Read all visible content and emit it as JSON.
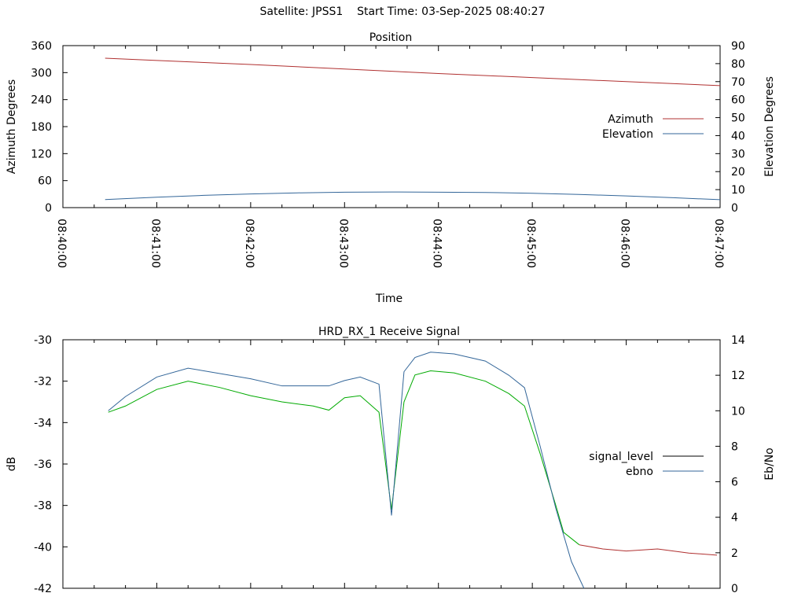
{
  "header": {
    "title": "Satellite: JPSS1    Start Time: 03-Sep-2025 08:40:27"
  },
  "chart_data": [
    {
      "type": "line",
      "title": "Position",
      "xlabel": "Time",
      "ylabel": "Azimuth Degrees",
      "y2label": "Elevation Degrees",
      "xlim": [
        "08:40:00",
        "08:47:00"
      ],
      "ylim": [
        0,
        360
      ],
      "y2lim": [
        0,
        90
      ],
      "x_ticks": [
        "08:40:00",
        "08:41:00",
        "08:42:00",
        "08:43:00",
        "08:44:00",
        "08:45:00",
        "08:46:00",
        "08:47:00"
      ],
      "y_ticks": [
        "0",
        "60",
        "120",
        "180",
        "240",
        "300",
        "360"
      ],
      "y2_ticks": [
        "0",
        "10",
        "20",
        "30",
        "40",
        "50",
        "60",
        "70",
        "80",
        "90"
      ],
      "legend": "right",
      "series": [
        {
          "name": "Azimuth",
          "axis": "y",
          "color": "#b03030",
          "x": [
            "08:40:27",
            "08:41:00",
            "08:42:00",
            "08:43:00",
            "08:44:00",
            "08:45:00",
            "08:46:00",
            "08:47:00"
          ],
          "values": [
            332,
            327,
            318,
            308,
            298,
            289,
            280,
            271
          ]
        },
        {
          "name": "Elevation",
          "axis": "y2",
          "color": "#336699",
          "x": [
            "08:40:27",
            "08:41:00",
            "08:41:30",
            "08:42:00",
            "08:42:30",
            "08:43:00",
            "08:43:30",
            "08:44:00",
            "08:44:30",
            "08:45:00",
            "08:45:30",
            "08:46:00",
            "08:46:30",
            "08:47:00"
          ],
          "values": [
            4.5,
            5.8,
            6.8,
            7.6,
            8.2,
            8.6,
            8.7,
            8.6,
            8.4,
            8.0,
            7.3,
            6.5,
            5.5,
            4.4
          ]
        }
      ]
    },
    {
      "type": "line",
      "title": "HRD_RX_1 Receive Signal",
      "xlabel": "",
      "ylabel": "dB",
      "y2label": "Eb/No",
      "xlim": [
        "08:40:00",
        "08:47:00"
      ],
      "ylim": [
        -42,
        -30
      ],
      "y2lim": [
        0,
        14
      ],
      "y_ticks": [
        "-30",
        "-32",
        "-34",
        "-36",
        "-38",
        "-40",
        "-42"
      ],
      "y2_ticks": [
        "0",
        "2",
        "4",
        "6",
        "8",
        "10",
        "12",
        "14"
      ],
      "legend": "right",
      "series": [
        {
          "name": "signal_level",
          "axis": "y",
          "color": "#00aa00",
          "tail_color": "#b03030",
          "x": [
            "08:40:29",
            "08:40:40",
            "08:41:00",
            "08:41:20",
            "08:41:40",
            "08:42:00",
            "08:42:20",
            "08:42:40",
            "08:42:50",
            "08:43:00",
            "08:43:10",
            "08:43:22",
            "08:43:30",
            "08:43:38",
            "08:43:45",
            "08:43:55",
            "08:44:10",
            "08:44:30",
            "08:44:45",
            "08:44:55",
            "08:45:05",
            "08:45:15",
            "08:45:20",
            "08:45:30",
            "08:45:45",
            "08:46:00",
            "08:46:20",
            "08:46:40",
            "08:46:58"
          ],
          "values": [
            -33.5,
            -33.2,
            -32.4,
            -32.0,
            -32.3,
            -32.7,
            -33.0,
            -33.2,
            -33.4,
            -32.8,
            -32.7,
            -33.5,
            -38.2,
            -33.0,
            -31.7,
            -31.5,
            -31.6,
            -32.0,
            -32.6,
            -33.2,
            -35.5,
            -38.0,
            -39.3,
            -39.9,
            -40.1,
            -40.2,
            -40.1,
            -40.3,
            -40.4
          ]
        },
        {
          "name": "ebno",
          "axis": "y2",
          "color": "#336699",
          "x": [
            "08:40:29",
            "08:40:40",
            "08:41:00",
            "08:41:20",
            "08:41:40",
            "08:42:00",
            "08:42:20",
            "08:42:40",
            "08:42:50",
            "08:43:00",
            "08:43:10",
            "08:43:22",
            "08:43:30",
            "08:43:38",
            "08:43:45",
            "08:43:55",
            "08:44:10",
            "08:44:30",
            "08:44:45",
            "08:44:55",
            "08:45:05",
            "08:45:15",
            "08:45:25",
            "08:45:33"
          ],
          "values": [
            10.0,
            10.8,
            11.9,
            12.4,
            12.1,
            11.8,
            11.4,
            11.4,
            11.4,
            11.7,
            11.9,
            11.5,
            4.1,
            12.2,
            13.0,
            13.3,
            13.2,
            12.8,
            12.0,
            11.3,
            8.0,
            4.5,
            1.5,
            0.0
          ]
        }
      ]
    }
  ]
}
